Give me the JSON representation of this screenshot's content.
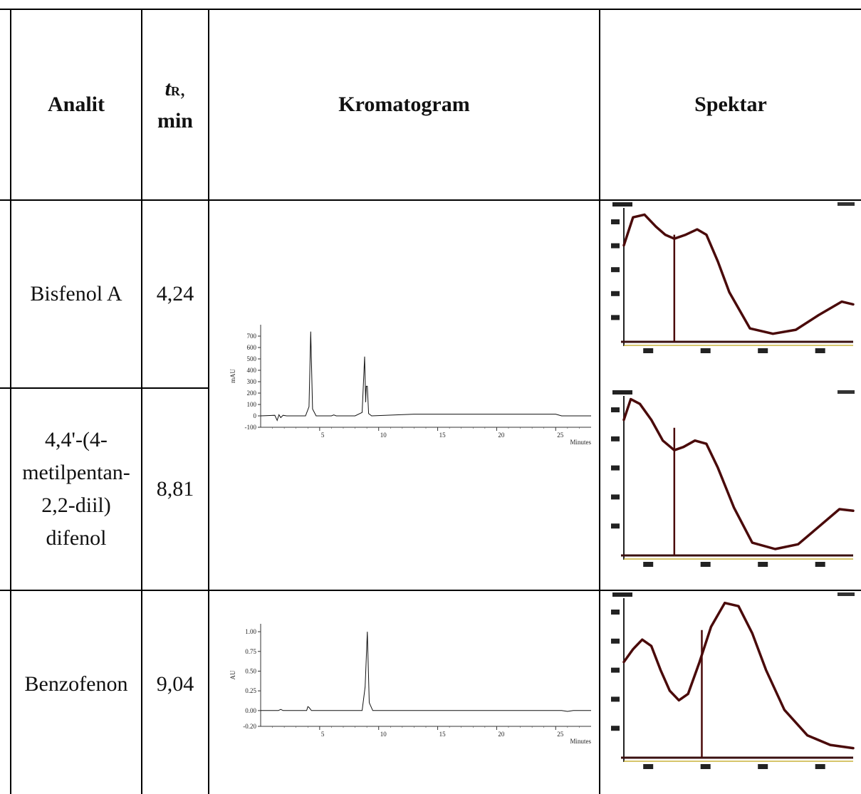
{
  "headers": {
    "analit": "Analit",
    "tr_t": "t",
    "tr_sub": "R",
    "tr_comma": ",",
    "tr_unit": "min",
    "kromatogram": "Kromatogram",
    "spektar": "Spektar"
  },
  "rows": [
    {
      "analit": "Bisfenol A",
      "tr": "4,24"
    },
    {
      "analit_lines": [
        "4,4'-(4-",
        "metilpentan-",
        "2,2-diil)",
        "difenol"
      ],
      "tr": "8,81"
    },
    {
      "analit": "Benzofenon",
      "tr": "9,04"
    }
  ],
  "chromatograms": [
    {
      "ylabel": "mAU",
      "xunit": "Minutes",
      "yticks": [
        "700",
        "600",
        "500",
        "400",
        "300",
        "200",
        "100",
        "0",
        "-100"
      ],
      "xticks": [
        "5",
        "10",
        "15",
        "20",
        "25"
      ],
      "chart_data": {
        "type": "line",
        "xlabel": "Minutes",
        "ylabel": "mAU",
        "xlim": [
          0,
          28
        ],
        "ylim": [
          -100,
          800
        ],
        "series": [
          {
            "x": [
              0,
              1.2,
              1.4,
              1.55,
              1.7,
              1.9,
              2.2,
              3.8,
              4.1,
              4.24,
              4.4,
              4.7,
              6.0,
              6.2,
              6.4,
              8.0,
              8.6,
              8.81,
              8.9,
              8.95,
              9.04,
              9.15,
              9.4,
              13,
              25,
              25.5,
              28
            ],
            "y": [
              0,
              5,
              -40,
              10,
              -15,
              5,
              0,
              0,
              80,
              740,
              60,
              0,
              0,
              8,
              0,
              0,
              30,
              520,
              120,
              260,
              260,
              20,
              0,
              15,
              15,
              0,
              0
            ]
          }
        ]
      }
    },
    {
      "ylabel": "AU",
      "xunit": "Minutes",
      "yticks": [
        "1.00",
        "0.75",
        "0.50",
        "0.25",
        "0.00",
        "-0.20"
      ],
      "xticks": [
        "5",
        "10",
        "15",
        "20",
        "25"
      ],
      "chart_data": {
        "type": "line",
        "xlabel": "Minutes",
        "ylabel": "AU",
        "xlim": [
          0,
          28
        ],
        "ylim": [
          -0.2,
          1.1
        ],
        "series": [
          {
            "x": [
              0,
              1.5,
              1.7,
              1.9,
              3.9,
              4.0,
              4.1,
              4.3,
              8.6,
              8.85,
              9.04,
              9.2,
              9.5,
              25.5,
              26,
              26.5,
              28
            ],
            "y": [
              0,
              0,
              0.015,
              0,
              0,
              0.05,
              0.04,
              0,
              0,
              0.3,
              1.0,
              0.1,
              0,
              0,
              -0.01,
              0,
              0
            ]
          }
        ]
      }
    }
  ],
  "spectra": [
    {
      "x": [
        0,
        4,
        9,
        14,
        18,
        22,
        27,
        32,
        36,
        41,
        46,
        55,
        65,
        75,
        85,
        95,
        100
      ],
      "y": [
        0.72,
        0.93,
        0.95,
        0.86,
        0.8,
        0.77,
        0.8,
        0.84,
        0.8,
        0.6,
        0.37,
        0.1,
        0.06,
        0.09,
        0.2,
        0.3,
        0.28
      ],
      "marker_x": 22
    },
    {
      "x": [
        0,
        3,
        7,
        12,
        17,
        22,
        26,
        31,
        36,
        41,
        48,
        56,
        66,
        76,
        85,
        94,
        100
      ],
      "y": [
        0.85,
        0.98,
        0.95,
        0.85,
        0.72,
        0.66,
        0.68,
        0.72,
        0.7,
        0.55,
        0.3,
        0.08,
        0.04,
        0.07,
        0.18,
        0.29,
        0.28
      ],
      "marker_x": 22
    },
    {
      "x": [
        0,
        4,
        8,
        12,
        16,
        20,
        24,
        28,
        33,
        38,
        44,
        50,
        56,
        62,
        70,
        80,
        90,
        100
      ],
      "y": [
        0.6,
        0.68,
        0.74,
        0.7,
        0.55,
        0.42,
        0.36,
        0.4,
        0.6,
        0.82,
        0.97,
        0.95,
        0.78,
        0.55,
        0.3,
        0.14,
        0.08,
        0.06
      ],
      "marker_x": 34
    }
  ],
  "colors": {
    "spectrum_line": "#4a0a0a",
    "baseline": "#3a1010",
    "axis_yellow": "#c9b23a"
  }
}
